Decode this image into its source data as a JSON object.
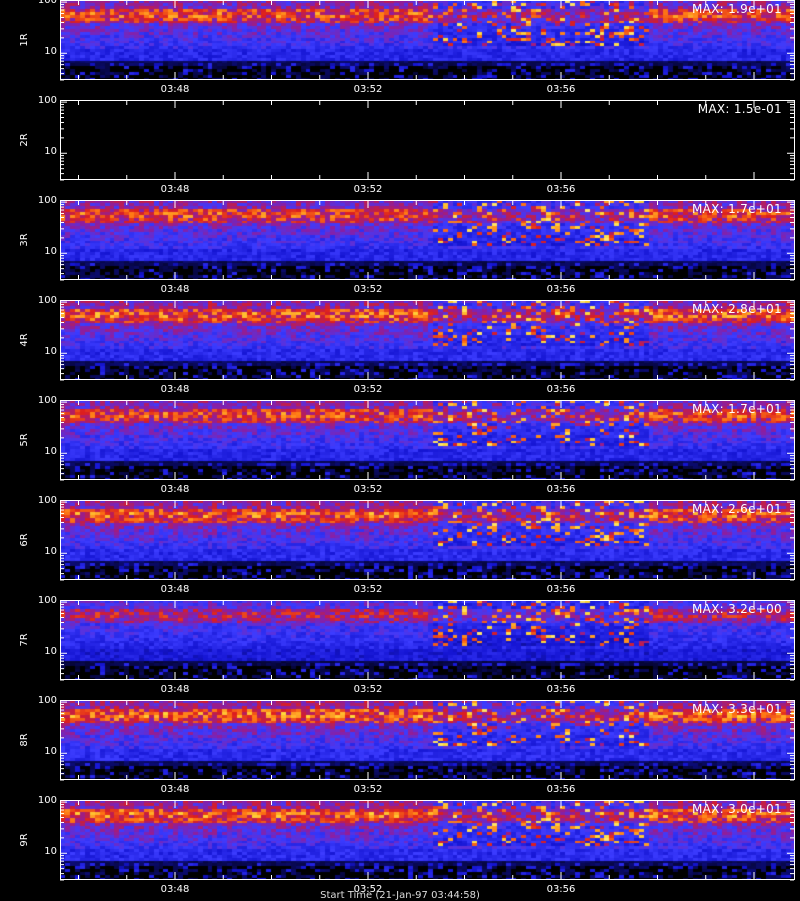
{
  "chart_data": {
    "type": "heatmap",
    "x_tick_labels": [
      "03:48",
      "03:52",
      "03:56"
    ],
    "y_tick_labels": [
      "100",
      "10"
    ],
    "yscale": "log",
    "panels": [
      {
        "label": "1R",
        "max_text": "MAX: 1.9e+01",
        "max_value": 19.0,
        "empty": false
      },
      {
        "label": "2R",
        "max_text": "MAX: 1.5e-01",
        "max_value": 0.15,
        "empty": true
      },
      {
        "label": "3R",
        "max_text": "MAX: 1.7e+01",
        "max_value": 17.0,
        "empty": false
      },
      {
        "label": "4R",
        "max_text": "MAX: 2.8e+01",
        "max_value": 28.0,
        "empty": false
      },
      {
        "label": "5R",
        "max_text": "MAX: 1.7e+01",
        "max_value": 17.0,
        "empty": false
      },
      {
        "label": "6R",
        "max_text": "MAX: 2.6e+01",
        "max_value": 26.0,
        "empty": false
      },
      {
        "label": "7R",
        "max_text": "MAX: 3.2e+00",
        "max_value": 3.2,
        "empty": false
      },
      {
        "label": "8R",
        "max_text": "MAX: 3.3e+01",
        "max_value": 33.0,
        "empty": false
      },
      {
        "label": "9R",
        "max_text": "MAX: 3.0e+01",
        "max_value": 30.0,
        "empty": false
      }
    ],
    "colorscale": [
      "#000000",
      "#1414d2",
      "#3c3cff",
      "#8c1ea0",
      "#dc1e1e",
      "#ff7814",
      "#ffdc3c",
      "#ffffff"
    ],
    "footer": "Start Time (21-Jan-97 03:44:58)"
  }
}
